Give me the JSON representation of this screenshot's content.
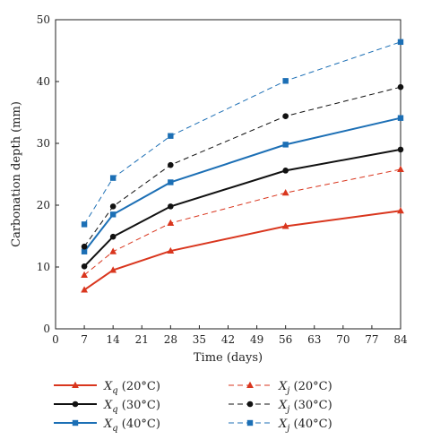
{
  "chart_data": {
    "type": "line",
    "xlabel": "Time (days)",
    "ylabel": "Carbonation depth (mm)",
    "xlim": [
      0,
      84
    ],
    "ylim": [
      0,
      50
    ],
    "xticks": [
      0,
      7,
      14,
      21,
      28,
      35,
      42,
      49,
      56,
      63,
      70,
      77,
      84
    ],
    "yticks": [
      0,
      10,
      20,
      30,
      40,
      50
    ],
    "x": [
      7,
      14,
      28,
      56,
      84
    ],
    "grid": false,
    "legend_position": "bottom",
    "series": [
      {
        "name": "Xq (20°C)",
        "name_var": "X",
        "name_sub": "q",
        "name_tail": " (20°C)",
        "color": "#d9361e",
        "dashed": false,
        "marker": "triangle",
        "values": [
          6.3,
          9.5,
          12.6,
          16.6,
          19.1
        ]
      },
      {
        "name": "Xq (30°C)",
        "name_var": "X",
        "name_sub": "q",
        "name_tail": " (30°C)",
        "color": "#111111",
        "dashed": false,
        "marker": "circle",
        "values": [
          10.1,
          14.9,
          19.8,
          25.6,
          29.0
        ]
      },
      {
        "name": "Xq (40°C)",
        "name_var": "X",
        "name_sub": "q",
        "name_tail": " (40°C)",
        "color": "#1c6fb5",
        "dashed": false,
        "marker": "square",
        "values": [
          12.5,
          18.5,
          23.7,
          29.8,
          34.1
        ]
      },
      {
        "name": "Xj (20°C)",
        "name_var": "X",
        "name_sub": "j",
        "name_tail": " (20°C)",
        "color": "#d9361e",
        "dashed": true,
        "marker": "triangle",
        "values": [
          8.7,
          12.5,
          17.1,
          22.0,
          25.8
        ]
      },
      {
        "name": "Xj (30°C)",
        "name_var": "X",
        "name_sub": "j",
        "name_tail": " (30°C)",
        "color": "#111111",
        "dashed": true,
        "marker": "circle",
        "values": [
          13.3,
          19.8,
          26.5,
          34.4,
          39.1
        ]
      },
      {
        "name": "Xj (40°C)",
        "name_var": "X",
        "name_sub": "j",
        "name_tail": " (40°C)",
        "color": "#1c6fb5",
        "dashed": true,
        "marker": "square",
        "values": [
          16.9,
          24.4,
          31.2,
          40.1,
          46.4
        ]
      }
    ]
  }
}
